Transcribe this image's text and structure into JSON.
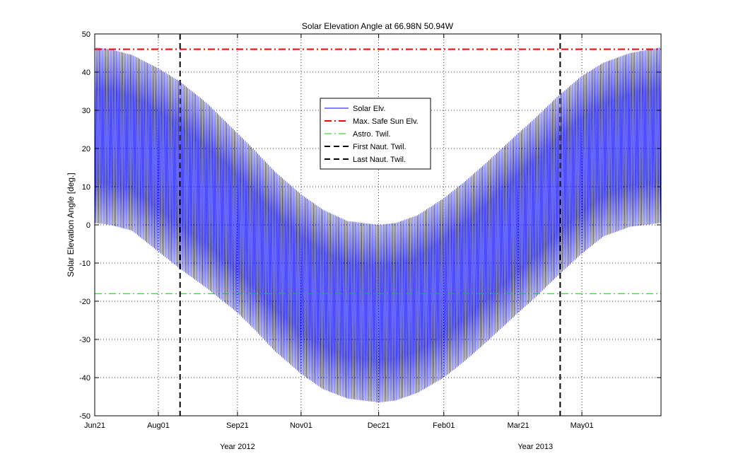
{
  "chart_data": {
    "type": "line",
    "title": "Solar Elevation Angle at 66.98N 50.94W",
    "xlabel": "",
    "ylabel": "Solar Elevation Angle [deg.]",
    "xlim": [
      "2012-06-21",
      "2013-06-21"
    ],
    "ylim": [
      -50,
      50
    ],
    "yticks": [
      -50,
      -40,
      -30,
      -20,
      -10,
      0,
      10,
      20,
      30,
      40,
      50
    ],
    "xticks": [
      {
        "date": "2012-06-21",
        "label": "Jun21"
      },
      {
        "date": "2012-08-01",
        "label": "Aug01"
      },
      {
        "date": "2012-09-21",
        "label": "Sep21"
      },
      {
        "date": "2012-11-01",
        "label": "Nov01"
      },
      {
        "date": "2012-12-21",
        "label": "Dec21"
      },
      {
        "date": "2013-02-01",
        "label": "Feb01"
      },
      {
        "date": "2013-03-21",
        "label": "Mar21"
      },
      {
        "date": "2013-05-01",
        "label": "May01"
      }
    ],
    "year_labels": [
      {
        "date": "2012-09-21",
        "label": "Year 2012"
      },
      {
        "date": "2013-04-01",
        "label": "Year 2013"
      }
    ],
    "grid": true,
    "legend_position": "center",
    "series": [
      {
        "name": "Solar Elv.",
        "color": "#0000ff",
        "style": "solid",
        "kind": "daily oscillation between envelopes",
        "upper_envelope": {
          "dates": [
            "2012-06-21",
            "2012-07-01",
            "2012-07-15",
            "2012-08-01",
            "2012-08-15",
            "2012-09-01",
            "2012-09-21",
            "2012-10-01",
            "2012-10-15",
            "2012-11-01",
            "2012-11-15",
            "2012-12-01",
            "2012-12-21",
            "2013-01-01",
            "2013-01-15",
            "2013-02-01",
            "2013-02-15",
            "2013-03-01",
            "2013-03-21",
            "2013-04-01",
            "2013-04-15",
            "2013-05-01",
            "2013-05-15",
            "2013-06-01",
            "2013-06-21"
          ],
          "values": [
            46.5,
            46,
            44.5,
            41,
            37.5,
            32,
            24,
            20,
            14,
            8,
            4,
            1,
            0,
            0.5,
            2.5,
            7,
            11.5,
            16.5,
            24,
            28,
            33.5,
            39,
            42.5,
            45,
            46.5
          ]
        },
        "lower_envelope": {
          "dates": [
            "2012-06-21",
            "2012-07-01",
            "2012-07-15",
            "2012-08-01",
            "2012-08-15",
            "2012-09-01",
            "2012-09-21",
            "2012-10-01",
            "2012-10-15",
            "2012-11-01",
            "2012-11-15",
            "2012-12-01",
            "2012-12-21",
            "2013-01-01",
            "2013-01-15",
            "2013-02-01",
            "2013-02-15",
            "2013-03-01",
            "2013-03-21",
            "2013-04-01",
            "2013-04-15",
            "2013-05-01",
            "2013-05-15",
            "2013-06-01",
            "2013-06-21"
          ],
          "values": [
            0.5,
            0,
            -1.5,
            -7,
            -11.5,
            -16.5,
            -23,
            -27,
            -33,
            -39,
            -43,
            -45.5,
            -46.5,
            -46,
            -44,
            -40,
            -35.5,
            -30.5,
            -23,
            -19,
            -13.5,
            -7.5,
            -3,
            -0.5,
            0.5
          ]
        }
      },
      {
        "name": "Max. Safe Sun Elv.",
        "color": "#ff0000",
        "style": "dashdot",
        "y": 46
      },
      {
        "name": "Astro. Twil.",
        "color": "#00cc00",
        "style": "dashdot",
        "y": -18
      },
      {
        "name": "First Naut. Twil.",
        "color": "#000000",
        "style": "dashed",
        "x": "2012-08-15"
      },
      {
        "name": "Last Naut. Twil.",
        "color": "#000000",
        "style": "dashed",
        "x": "2013-04-17"
      }
    ]
  }
}
